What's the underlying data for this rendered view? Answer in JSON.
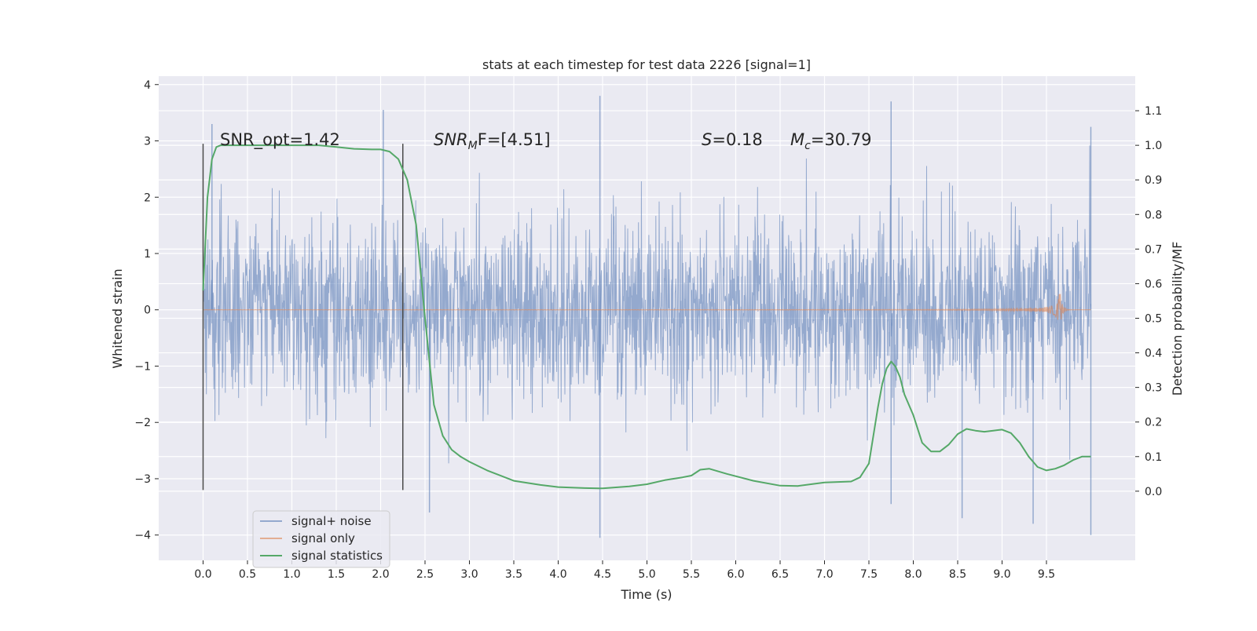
{
  "chart_data": {
    "type": "line",
    "title": "stats at each timestep for test data 2226 [signal=1]",
    "xlabel": "Time (s)",
    "ylabel_left": "Whitened strain",
    "ylabel_right": "Detection probability/MF",
    "xlim": [
      -0.5,
      10.5
    ],
    "ylim_left": [
      -4.45,
      4.15
    ],
    "ylim_right": [
      -0.2,
      1.2
    ],
    "x_ticks": [
      "0.0",
      "0.5",
      "1.0",
      "1.5",
      "2.0",
      "2.5",
      "3.0",
      "3.5",
      "4.0",
      "4.5",
      "5.0",
      "5.5",
      "6.0",
      "6.5",
      "7.0",
      "7.5",
      "8.0",
      "8.5",
      "9.0",
      "9.5"
    ],
    "y_left_ticks": [
      "4",
      "3",
      "2",
      "1",
      "0",
      "−1",
      "−2",
      "−3",
      "−4"
    ],
    "y_right_ticks": [
      "1.1",
      "1.0",
      "0.9",
      "0.8",
      "0.7",
      "0.6",
      "0.5",
      "0.4",
      "0.3",
      "0.2",
      "0.1",
      "0.0"
    ],
    "grid": true,
    "legend_position": "lower-left",
    "annotations": {
      "snr_opt": "SNR_opt=1.42",
      "snr_mf_italic": "SNR",
      "snr_mf_sub": "M",
      "snr_mf_rest": "F=[4.51]",
      "s_italic": "S",
      "s_rest": "=0.18",
      "mc_italic": "M",
      "mc_sub": "c",
      "mc_rest": "=30.79"
    },
    "vertical_markers_x": [
      0.0,
      2.25
    ],
    "series": [
      {
        "name": "signal+ noise",
        "color": "#4c72b0",
        "axis": "left",
        "t_range": [
          0.0,
          10.0
        ],
        "envelope_range": [
          -3.2,
          3.2
        ],
        "notable_spikes": [
          {
            "x": 0.1,
            "y": 3.3
          },
          {
            "x": 2.03,
            "y": 3.55
          },
          {
            "x": 2.55,
            "y": -3.6
          },
          {
            "x": 4.47,
            "y": 3.8
          },
          {
            "x": 4.47,
            "y": -4.05
          },
          {
            "x": 7.75,
            "y": 3.7
          },
          {
            "x": 7.75,
            "y": -3.45
          },
          {
            "x": 8.55,
            "y": -3.7
          },
          {
            "x": 9.35,
            "y": -3.8
          },
          {
            "x": 10.0,
            "y": 3.25
          },
          {
            "x": 10.0,
            "y": -4.0
          }
        ]
      },
      {
        "name": "signal only",
        "color": "#dd8452",
        "axis": "left",
        "t_range": [
          0.0,
          10.0
        ],
        "peak_time": 9.65,
        "peak_amplitude": 0.35
      },
      {
        "name": "signal statistics",
        "color": "#55a868",
        "axis": "right",
        "x": [
          0.0,
          0.05,
          0.1,
          0.15,
          0.2,
          0.3,
          0.5,
          0.8,
          1.0,
          1.3,
          1.5,
          1.7,
          1.9,
          2.0,
          2.1,
          2.2,
          2.3,
          2.4,
          2.5,
          2.6,
          2.7,
          2.8,
          2.9,
          3.0,
          3.2,
          3.5,
          3.8,
          4.0,
          4.3,
          4.5,
          4.8,
          5.0,
          5.2,
          5.4,
          5.5,
          5.6,
          5.7,
          5.9,
          6.2,
          6.5,
          6.7,
          7.0,
          7.3,
          7.4,
          7.5,
          7.6,
          7.65,
          7.7,
          7.75,
          7.8,
          7.85,
          7.9,
          8.0,
          8.1,
          8.2,
          8.3,
          8.4,
          8.5,
          8.6,
          8.7,
          8.8,
          8.9,
          9.0,
          9.1,
          9.2,
          9.3,
          9.4,
          9.5,
          9.6,
          9.7,
          9.8,
          9.9,
          10.0
        ],
        "values": [
          0.58,
          0.85,
          0.96,
          0.995,
          1.0,
          1.0,
          1.0,
          1.0,
          1.0,
          1.0,
          0.995,
          0.99,
          0.988,
          0.988,
          0.982,
          0.96,
          0.9,
          0.77,
          0.5,
          0.25,
          0.16,
          0.12,
          0.1,
          0.085,
          0.06,
          0.03,
          0.018,
          0.012,
          0.009,
          0.008,
          0.014,
          0.02,
          0.032,
          0.04,
          0.045,
          0.062,
          0.065,
          0.05,
          0.03,
          0.016,
          0.015,
          0.025,
          0.028,
          0.04,
          0.08,
          0.24,
          0.31,
          0.355,
          0.375,
          0.36,
          0.33,
          0.28,
          0.22,
          0.14,
          0.115,
          0.115,
          0.135,
          0.165,
          0.18,
          0.175,
          0.172,
          0.175,
          0.178,
          0.168,
          0.14,
          0.1,
          0.07,
          0.06,
          0.065,
          0.075,
          0.09,
          0.1,
          0.1
        ]
      }
    ]
  },
  "legend": {
    "items": [
      {
        "label": "signal+ noise",
        "color": "#4c72b0"
      },
      {
        "label": "signal only",
        "color": "#dd8452"
      },
      {
        "label": "signal statistics",
        "color": "#55a868"
      }
    ]
  },
  "colors": {
    "axes_background": "#eaeaf2",
    "grid": "#ffffff",
    "marker_line": "#4a4a4a"
  }
}
